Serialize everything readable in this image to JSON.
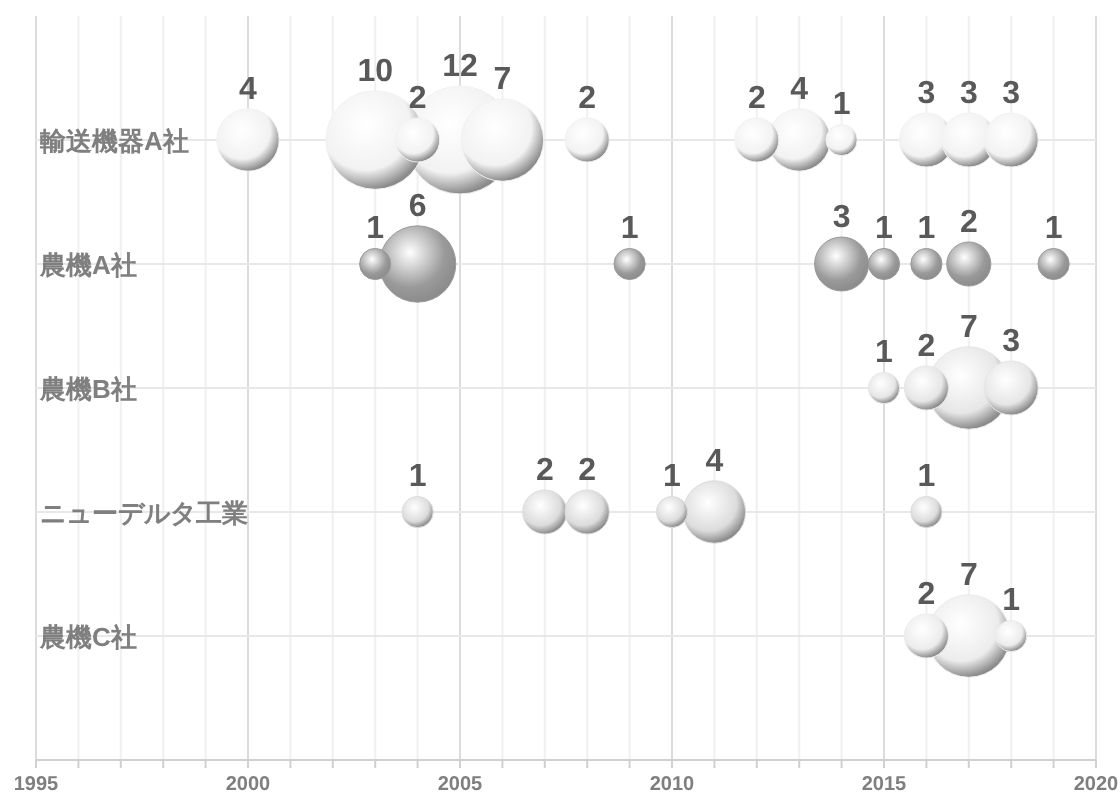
{
  "chart_data": {
    "type": "bubble",
    "orientation": "horizontal",
    "categories": [
      "輸送機器A社",
      "農機A社",
      "農機B社",
      "ニューデルタ工業",
      "農機C社"
    ],
    "xlim": [
      1995,
      2020
    ],
    "xticks": [
      1995,
      {
        "value": 1996,
        "label": null
      },
      {
        "value": 1997,
        "label": null
      },
      {
        "value": 1998,
        "label": null
      },
      {
        "value": 1999,
        "label": null
      },
      2000,
      {
        "value": 2001,
        "label": null
      },
      {
        "value": 2002,
        "label": null
      },
      {
        "value": 2003,
        "label": null
      },
      {
        "value": 2004,
        "label": null
      },
      2005,
      {
        "value": 2006,
        "label": null
      },
      {
        "value": 2007,
        "label": null
      },
      {
        "value": 2008,
        "label": null
      },
      {
        "value": 2009,
        "label": null
      },
      2010,
      {
        "value": 2011,
        "label": null
      },
      {
        "value": 2012,
        "label": null
      },
      {
        "value": 2013,
        "label": null
      },
      {
        "value": 2014,
        "label": null
      },
      2015,
      {
        "value": 2016,
        "label": null
      },
      {
        "value": 2017,
        "label": null
      },
      {
        "value": 2018,
        "label": null
      },
      {
        "value": 2019,
        "label": null
      },
      2020
    ],
    "grid": true,
    "series": [
      {
        "colors": [
          "#f2f2f2",
          "#9a9a9a",
          "#e6e6e6",
          "#dcdcdc",
          "#ececec"
        ],
        "values": [
          2000,
          null,
          null,
          null,
          null
        ],
        "sizes": [
          4,
          null,
          null,
          null,
          null
        ],
        "value_labels": [
          "4",
          null,
          null,
          null,
          null
        ]
      },
      {
        "colors": [
          "#f2f2f2",
          "#9a9a9a",
          "#e6e6e6",
          "#dcdcdc",
          "#ececec"
        ],
        "values": [
          2003,
          2003,
          null,
          null,
          null
        ],
        "sizes": [
          10,
          1,
          null,
          null,
          null
        ],
        "value_labels": [
          "10",
          "1",
          null,
          null,
          null
        ]
      },
      {
        "colors": [
          "#f2f2f2",
          "#9a9a9a",
          "#e6e6e6",
          "#dcdcdc",
          "#ececec"
        ],
        "values": [
          2004,
          2004,
          null,
          2004,
          null
        ],
        "sizes": [
          2,
          6,
          null,
          1,
          null
        ],
        "value_labels": [
          "2",
          "6",
          null,
          "1",
          null
        ]
      },
      {
        "colors": [
          "#f2f2f2",
          "#9a9a9a",
          "#e6e6e6",
          "#dcdcdc",
          "#ececec"
        ],
        "values": [
          2005,
          null,
          null,
          null,
          null
        ],
        "sizes": [
          12,
          null,
          null,
          null,
          null
        ],
        "value_labels": [
          "12",
          null,
          null,
          null,
          null
        ]
      },
      {
        "colors": [
          "#f2f2f2",
          "#9a9a9a",
          "#e6e6e6",
          "#dcdcdc",
          "#ececec"
        ],
        "values": [
          2006,
          null,
          null,
          null,
          null
        ],
        "sizes": [
          7,
          null,
          null,
          null,
          null
        ],
        "value_labels": [
          "7",
          null,
          null,
          null,
          null
        ]
      },
      {
        "colors": [
          "#f2f2f2",
          "#9a9a9a",
          "#e6e6e6",
          "#dcdcdc",
          "#ececec"
        ],
        "values": [
          null,
          null,
          null,
          2007,
          null
        ],
        "sizes": [
          null,
          null,
          null,
          2,
          null
        ],
        "value_labels": [
          null,
          null,
          null,
          "2",
          null
        ]
      },
      {
        "colors": [
          "#f2f2f2",
          "#9a9a9a",
          "#e6e6e6",
          "#dcdcdc",
          "#ececec"
        ],
        "values": [
          2008,
          null,
          null,
          2008,
          null
        ],
        "sizes": [
          2,
          null,
          null,
          2,
          null
        ],
        "value_labels": [
          "2",
          null,
          null,
          "2",
          null
        ]
      },
      {
        "colors": [
          "#f2f2f2",
          "#9a9a9a",
          "#e6e6e6",
          "#dcdcdc",
          "#ececec"
        ],
        "values": [
          null,
          2009,
          null,
          null,
          null
        ],
        "sizes": [
          null,
          1,
          null,
          null,
          null
        ],
        "value_labels": [
          null,
          "1",
          null,
          null,
          null
        ]
      },
      {
        "colors": [
          "#f2f2f2",
          "#9a9a9a",
          "#e6e6e6",
          "#dcdcdc",
          "#ececec"
        ],
        "values": [
          null,
          null,
          null,
          2010,
          null
        ],
        "sizes": [
          null,
          null,
          null,
          1,
          null
        ],
        "value_labels": [
          null,
          null,
          null,
          "1",
          null
        ]
      },
      {
        "colors": [
          "#f2f2f2",
          "#9a9a9a",
          "#e6e6e6",
          "#dcdcdc",
          "#ececec"
        ],
        "values": [
          null,
          null,
          null,
          2011,
          null
        ],
        "sizes": [
          null,
          null,
          null,
          4,
          null
        ],
        "value_labels": [
          null,
          null,
          null,
          "4",
          null
        ]
      },
      {
        "colors": [
          "#f2f2f2",
          "#9a9a9a",
          "#e6e6e6",
          "#dcdcdc",
          "#ececec"
        ],
        "values": [
          2012,
          null,
          null,
          null,
          null
        ],
        "sizes": [
          2,
          null,
          null,
          null,
          null
        ],
        "value_labels": [
          "2",
          null,
          null,
          null,
          null
        ]
      },
      {
        "colors": [
          "#f2f2f2",
          "#9a9a9a",
          "#e6e6e6",
          "#dcdcdc",
          "#ececec"
        ],
        "values": [
          2013,
          null,
          null,
          null,
          null
        ],
        "sizes": [
          4,
          null,
          null,
          null,
          null
        ],
        "value_labels": [
          "4",
          null,
          null,
          null,
          null
        ]
      },
      {
        "colors": [
          "#f2f2f2",
          "#9a9a9a",
          "#e6e6e6",
          "#dcdcdc",
          "#ececec"
        ],
        "values": [
          2014,
          2014,
          null,
          null,
          null
        ],
        "sizes": [
          1,
          3,
          null,
          null,
          null
        ],
        "value_labels": [
          "1",
          "3",
          null,
          null,
          null
        ]
      },
      {
        "colors": [
          "#f2f2f2",
          "#9a9a9a",
          "#e6e6e6",
          "#dcdcdc",
          "#ececec"
        ],
        "values": [
          null,
          2015,
          2015,
          null,
          null
        ],
        "sizes": [
          null,
          1,
          1,
          null,
          null
        ],
        "value_labels": [
          null,
          "1",
          "1",
          null,
          null
        ]
      },
      {
        "colors": [
          "#f2f2f2",
          "#9a9a9a",
          "#e6e6e6",
          "#dcdcdc",
          "#ececec"
        ],
        "values": [
          2016,
          2016,
          2016,
          2016,
          2016
        ],
        "sizes": [
          3,
          1,
          2,
          1,
          2
        ],
        "value_labels": [
          "3",
          "1",
          "2",
          "1",
          "2"
        ]
      },
      {
        "colors": [
          "#f2f2f2",
          "#9a9a9a",
          "#e6e6e6",
          "#dcdcdc",
          "#ececec"
        ],
        "values": [
          2017,
          2017,
          2017,
          null,
          2017
        ],
        "sizes": [
          3,
          2,
          7,
          null,
          7
        ],
        "value_labels": [
          "3",
          "2",
          "7",
          null,
          "7"
        ]
      },
      {
        "colors": [
          "#f2f2f2",
          "#9a9a9a",
          "#e6e6e6",
          "#dcdcdc",
          "#ececec"
        ],
        "values": [
          2018,
          null,
          2018,
          null,
          2018
        ],
        "sizes": [
          3,
          null,
          3,
          null,
          1
        ],
        "value_labels": [
          "3",
          null,
          "3",
          null,
          "1"
        ]
      },
      {
        "colors": [
          "#f2f2f2",
          "#9a9a9a",
          "#e6e6e6",
          "#dcdcdc",
          "#ececec"
        ],
        "values": [
          null,
          2019,
          null,
          null,
          null
        ],
        "sizes": [
          null,
          1,
          null,
          null,
          null
        ],
        "value_labels": [
          null,
          "1",
          null,
          null,
          null
        ]
      }
    ]
  }
}
